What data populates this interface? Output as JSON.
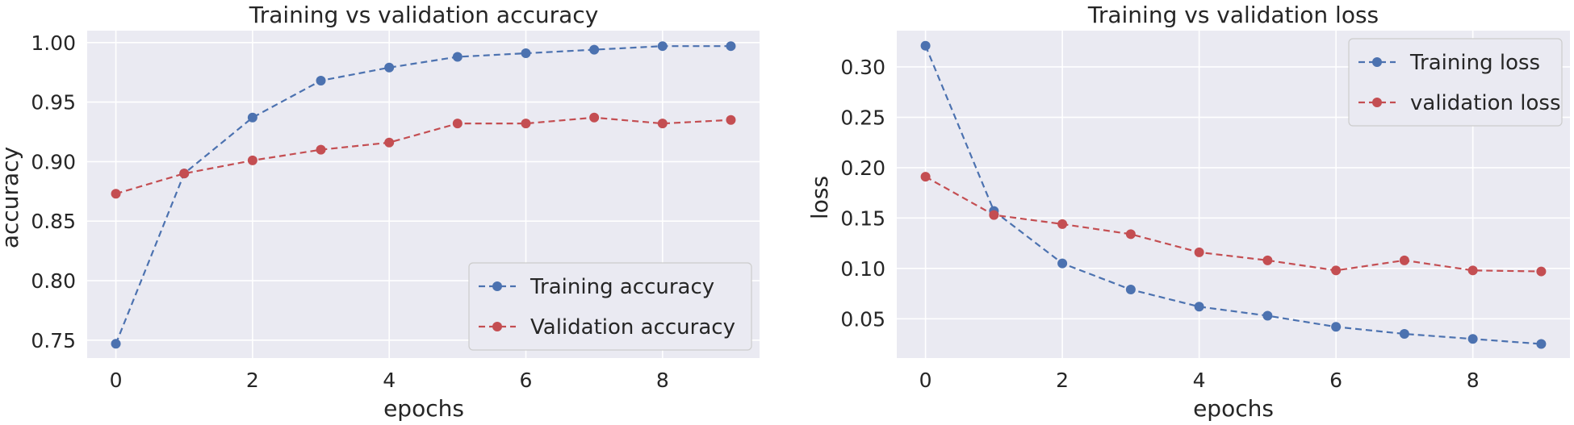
{
  "colors": {
    "training": "#4c72b0",
    "validation": "#c44e52"
  },
  "chart_data": [
    {
      "type": "line",
      "title": "Training vs validation accuracy",
      "xlabel": "epochs",
      "ylabel": "accuracy",
      "x": [
        0,
        1,
        2,
        3,
        4,
        5,
        6,
        7,
        8,
        9
      ],
      "xlim": [
        -0.42,
        9.42
      ],
      "ylim": [
        0.735,
        1.01
      ],
      "xticks": [
        0,
        2,
        4,
        6,
        8
      ],
      "yticks": [
        0.75,
        0.8,
        0.85,
        0.9,
        0.95,
        1.0
      ],
      "ytick_labels": [
        "0.75",
        "0.80",
        "0.85",
        "0.90",
        "0.95",
        "1.00"
      ],
      "xtick_labels": [
        "0",
        "2",
        "4",
        "6",
        "8"
      ],
      "legend_position": "lower-right",
      "series": [
        {
          "name": "Training accuracy",
          "color_key": "training",
          "values": [
            0.747,
            0.89,
            0.937,
            0.968,
            0.979,
            0.988,
            0.991,
            0.994,
            0.997,
            0.997
          ]
        },
        {
          "name": "Validation accuracy",
          "color_key": "validation",
          "values": [
            0.873,
            0.89,
            0.901,
            0.91,
            0.916,
            0.932,
            0.932,
            0.937,
            0.932,
            0.935
          ]
        }
      ]
    },
    {
      "type": "line",
      "title": "Training vs validation loss",
      "xlabel": "epochs",
      "ylabel": "loss",
      "x": [
        0,
        1,
        2,
        3,
        4,
        5,
        6,
        7,
        8,
        9
      ],
      "xlim": [
        -0.42,
        9.42
      ],
      "ylim": [
        0.011,
        0.336
      ],
      "xticks": [
        0,
        2,
        4,
        6,
        8
      ],
      "yticks": [
        0.05,
        0.1,
        0.15,
        0.2,
        0.25,
        0.3
      ],
      "ytick_labels": [
        "0.05",
        "0.10",
        "0.15",
        "0.20",
        "0.25",
        "0.30"
      ],
      "xtick_labels": [
        "0",
        "2",
        "4",
        "6",
        "8"
      ],
      "legend_position": "upper-right",
      "series": [
        {
          "name": "Training loss",
          "color_key": "training",
          "values": [
            0.321,
            0.157,
            0.105,
            0.079,
            0.062,
            0.053,
            0.042,
            0.035,
            0.03,
            0.025
          ]
        },
        {
          "name": "validation loss",
          "color_key": "validation",
          "values": [
            0.191,
            0.153,
            0.144,
            0.134,
            0.116,
            0.108,
            0.098,
            0.108,
            0.098,
            0.097
          ]
        }
      ]
    }
  ]
}
